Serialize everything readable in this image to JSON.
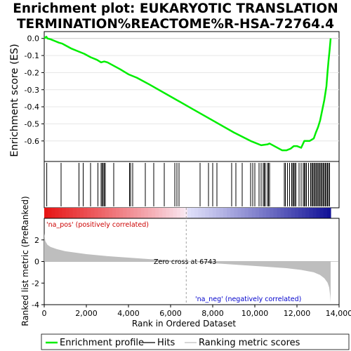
{
  "chart_data": {
    "type": "line",
    "title_line1": "Enrichment plot: EUKARYOTIC TRANSLATION",
    "title_line2": "TERMINATION%REACTOME%R-HSA-72764.4",
    "xlabel": "Rank in Ordered Dataset",
    "ylabel_top": "Enrichment score (ES)",
    "ylabel_bottom": "Ranked list metric (PreRanked)",
    "xlim": [
      0,
      14000
    ],
    "ylim_es": [
      -0.72,
      0.04
    ],
    "ylim_metric": [
      -4,
      4
    ],
    "x_ticks": [
      0,
      2000,
      4000,
      6000,
      8000,
      10000,
      12000,
      14000
    ],
    "x_tick_labels": [
      "0",
      "2,000",
      "4,000",
      "6,000",
      "8,000",
      "10,000",
      "12,000",
      "14,000"
    ],
    "es_ticks": [
      0.0,
      -0.1,
      -0.2,
      -0.3,
      -0.4,
      -0.5,
      -0.6
    ],
    "es_tick_labels": [
      "0.0",
      "-0.1",
      "-0.2",
      "-0.3",
      "-0.4",
      "-0.5",
      "-0.6"
    ],
    "metric_ticks": [
      2,
      0,
      -2,
      -4
    ],
    "metric_tick_labels": [
      "2",
      "0",
      "-2",
      "-4"
    ],
    "n_genes": 13600,
    "zero_cross": 6743,
    "zero_cross_label": "Zero cross at 6743",
    "pos_label": "'na_pos' (positively correlated)",
    "neg_label": "'na_neg' (negatively correlated)",
    "colors": {
      "es_line": "#00ee00",
      "pos_text": "#cc0000",
      "neg_text": "#0000cc",
      "metric_fill": "#bebebe"
    },
    "es_curve": {
      "x": [
        0,
        100,
        150,
        300,
        500,
        700,
        850,
        1000,
        1300,
        1600,
        1900,
        2200,
        2500,
        2700,
        2850,
        3000,
        3300,
        3600,
        4000,
        4400,
        5000,
        6000,
        7000,
        8000,
        9000,
        9800,
        10300,
        10600,
        10700,
        11000,
        11300,
        11500,
        11700,
        11850,
        12000,
        12200,
        12350,
        12450,
        12600,
        12800,
        12900,
        13000,
        13100,
        13200,
        13300,
        13400,
        13450,
        13500,
        13550,
        13600
      ],
      "y": [
        0.0,
        0.01,
        0.0,
        -0.005,
        -0.015,
        -0.025,
        -0.03,
        -0.04,
        -0.06,
        -0.075,
        -0.09,
        -0.11,
        -0.125,
        -0.14,
        -0.135,
        -0.14,
        -0.16,
        -0.18,
        -0.21,
        -0.23,
        -0.27,
        -0.34,
        -0.41,
        -0.48,
        -0.55,
        -0.6,
        -0.625,
        -0.62,
        -0.615,
        -0.635,
        -0.655,
        -0.655,
        -0.645,
        -0.63,
        -0.63,
        -0.64,
        -0.6,
        -0.6,
        -0.6,
        -0.585,
        -0.55,
        -0.52,
        -0.48,
        -0.42,
        -0.36,
        -0.28,
        -0.2,
        -0.13,
        -0.07,
        0.0
      ]
    },
    "hits": [
      120,
      800,
      1650,
      1850,
      2200,
      2550,
      2700,
      2750,
      2800,
      2850,
      2900,
      3300,
      4050,
      4100,
      4200,
      4800,
      5200,
      5700,
      6200,
      6300,
      6400,
      7400,
      7800,
      8000,
      8200,
      8900,
      9100,
      9400,
      9800,
      9900,
      10000,
      10200,
      10300,
      10400,
      10450,
      10500,
      10600,
      10650,
      10700,
      11400,
      11450,
      11550,
      11650,
      11750,
      11800,
      11850,
      11900,
      11950,
      12100,
      12200,
      12300,
      12350,
      12400,
      12450,
      12550,
      12650,
      12700,
      12750,
      12800,
      12850,
      12900,
      12950,
      13000,
      13050,
      13100,
      13150,
      13200,
      13250,
      13300,
      13350,
      13400,
      13450,
      13500,
      13550
    ],
    "metric_curve": {
      "x": [
        0,
        50,
        150,
        300,
        600,
        1000,
        2000,
        3000,
        4000,
        5000,
        6000,
        6743,
        7500,
        8500,
        9500,
        10500,
        11500,
        12200,
        12800,
        13100,
        13300,
        13450,
        13530,
        13580,
        13600
      ],
      "y": [
        2.6,
        1.9,
        1.55,
        1.35,
        1.15,
        0.95,
        0.68,
        0.5,
        0.36,
        0.22,
        0.1,
        0.0,
        -0.1,
        -0.22,
        -0.35,
        -0.48,
        -0.62,
        -0.78,
        -1.0,
        -1.25,
        -1.55,
        -1.95,
        -2.4,
        -3.2,
        -3.8
      ]
    }
  },
  "legend": {
    "items": [
      {
        "label": "Enrichment profile",
        "color": "#00ee00"
      },
      {
        "label": "Hits",
        "color": "#000000"
      },
      {
        "label": "Ranking metric scores",
        "color": "#bebebe"
      }
    ]
  }
}
